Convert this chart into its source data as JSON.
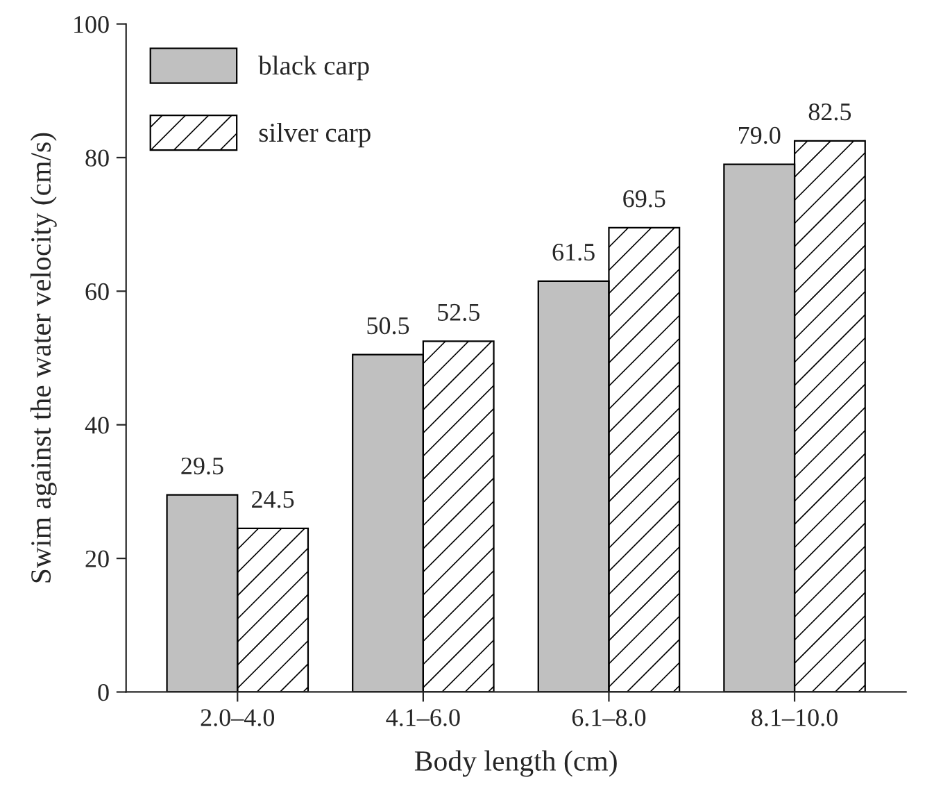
{
  "chart_data": {
    "type": "bar",
    "xlabel": "Body length (cm)",
    "ylabel": "Swim against the water velocity (cm/s)",
    "categories": [
      "2.0–4.0",
      "4.1–6.0",
      "6.1–8.0",
      "8.1–10.0"
    ],
    "series": [
      {
        "name": "black carp",
        "color": "#c0c0c0",
        "values": [
          29.5,
          50.5,
          61.5,
          79.0
        ],
        "value_labels": [
          "29.5",
          "50.5",
          "61.5",
          "79.0"
        ]
      },
      {
        "name": "silver carp",
        "color": "#000000",
        "values": [
          24.5,
          52.5,
          69.5,
          82.5
        ],
        "value_labels": [
          "24.5",
          "52.5",
          "69.5",
          "82.5"
        ]
      }
    ],
    "ylim": [
      0,
      100
    ],
    "yticks": [
      0,
      20,
      40,
      60,
      80,
      100
    ],
    "grid": false,
    "legend": "top left"
  }
}
